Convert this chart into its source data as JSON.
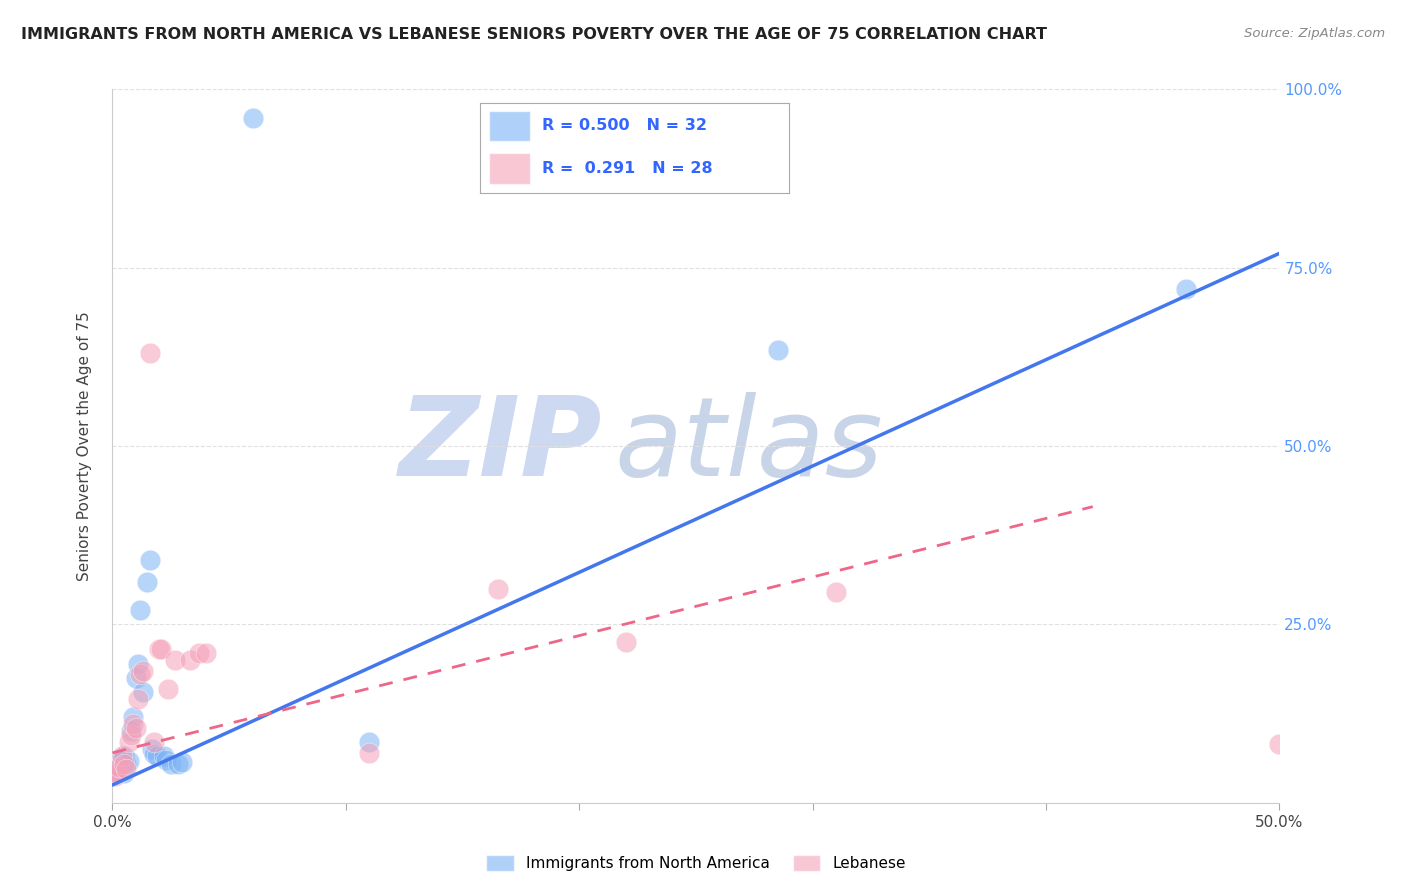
{
  "title": "IMMIGRANTS FROM NORTH AMERICA VS LEBANESE SENIORS POVERTY OVER THE AGE OF 75 CORRELATION CHART",
  "source": "Source: ZipAtlas.com",
  "ylabel": "Seniors Poverty Over the Age of 75",
  "xlim": [
    0,
    0.5
  ],
  "ylim": [
    0,
    1.0
  ],
  "xticklabels": [
    "0.0%",
    "",
    "",
    "",
    "",
    "",
    "50.0%"
  ],
  "ytick_vals": [
    0.0,
    0.25,
    0.5,
    0.75,
    1.0
  ],
  "yticklabels_right": [
    "",
    "25.0%",
    "50.0%",
    "75.0%",
    "100.0%"
  ],
  "legend1_label": "Immigrants from North America",
  "legend2_label": "Lebanese",
  "R1": 0.5,
  "N1": 32,
  "R2": 0.291,
  "N2": 28,
  "blue_color": "#7ab3f5",
  "pink_color": "#f5a0b8",
  "blue_scatter": [
    [
      0.001,
      0.05
    ],
    [
      0.001,
      0.04
    ],
    [
      0.002,
      0.055
    ],
    [
      0.002,
      0.045
    ],
    [
      0.003,
      0.048
    ],
    [
      0.003,
      0.052
    ],
    [
      0.004,
      0.06
    ],
    [
      0.004,
      0.058
    ],
    [
      0.005,
      0.065
    ],
    [
      0.005,
      0.042
    ],
    [
      0.006,
      0.055
    ],
    [
      0.007,
      0.058
    ],
    [
      0.008,
      0.1
    ],
    [
      0.009,
      0.12
    ],
    [
      0.01,
      0.175
    ],
    [
      0.011,
      0.195
    ],
    [
      0.012,
      0.27
    ],
    [
      0.013,
      0.155
    ],
    [
      0.015,
      0.31
    ],
    [
      0.016,
      0.34
    ],
    [
      0.017,
      0.075
    ],
    [
      0.018,
      0.068
    ],
    [
      0.019,
      0.065
    ],
    [
      0.022,
      0.065
    ],
    [
      0.023,
      0.06
    ],
    [
      0.025,
      0.055
    ],
    [
      0.028,
      0.055
    ],
    [
      0.03,
      0.057
    ],
    [
      0.06,
      0.96
    ],
    [
      0.11,
      0.085
    ],
    [
      0.285,
      0.635
    ],
    [
      0.46,
      0.72
    ]
  ],
  "pink_scatter": [
    [
      0.001,
      0.045
    ],
    [
      0.001,
      0.038
    ],
    [
      0.002,
      0.042
    ],
    [
      0.003,
      0.05
    ],
    [
      0.004,
      0.065
    ],
    [
      0.005,
      0.055
    ],
    [
      0.006,
      0.048
    ],
    [
      0.007,
      0.085
    ],
    [
      0.008,
      0.095
    ],
    [
      0.009,
      0.11
    ],
    [
      0.01,
      0.105
    ],
    [
      0.011,
      0.145
    ],
    [
      0.012,
      0.18
    ],
    [
      0.013,
      0.185
    ],
    [
      0.016,
      0.63
    ],
    [
      0.018,
      0.085
    ],
    [
      0.02,
      0.215
    ],
    [
      0.021,
      0.215
    ],
    [
      0.024,
      0.16
    ],
    [
      0.027,
      0.2
    ],
    [
      0.033,
      0.2
    ],
    [
      0.037,
      0.21
    ],
    [
      0.04,
      0.21
    ],
    [
      0.11,
      0.07
    ],
    [
      0.165,
      0.3
    ],
    [
      0.22,
      0.225
    ],
    [
      0.31,
      0.295
    ],
    [
      0.5,
      0.082
    ]
  ],
  "blue_line_x": [
    0.0,
    0.5
  ],
  "blue_line_y": [
    0.025,
    0.77
  ],
  "pink_line_x": [
    0.0,
    0.42
  ],
  "pink_line_y": [
    0.07,
    0.415
  ],
  "watermark_text": "ZIP",
  "watermark_text2": "atlas",
  "watermark_color": "#ccd9f0",
  "watermark_color2": "#c8d5e8",
  "background_color": "#ffffff",
  "grid_color": "#e0e0e0"
}
